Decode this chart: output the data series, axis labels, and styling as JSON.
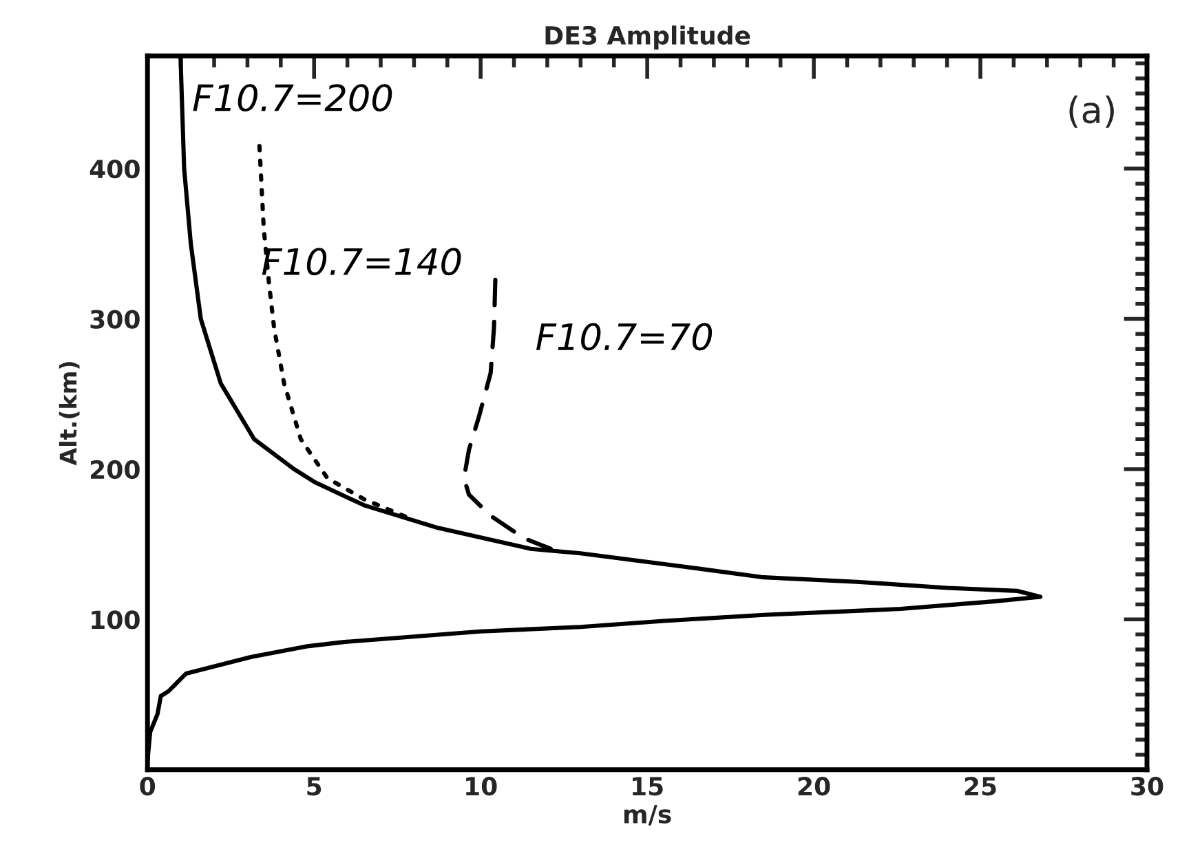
{
  "chart_data": {
    "type": "line",
    "title": "DE3 Amplitude",
    "xlabel": "m/s",
    "ylabel": "Alt.(km)",
    "xlim": [
      0,
      30
    ],
    "xticks": [
      0,
      5,
      10,
      15,
      20,
      25,
      30
    ],
    "ylim": [
      0,
      475
    ],
    "yticks": [
      100,
      200,
      300,
      400
    ],
    "grid": false,
    "legend": false,
    "marker": "none",
    "annotations": [
      "(a)"
    ],
    "series": [
      {
        "name": "F10.7=200",
        "color": "#000000",
        "line_style": "solid",
        "x": [
          0.99,
          1.1,
          1.3,
          1.6,
          2.2,
          3.2,
          4.4,
          5.05,
          6.5,
          8.7,
          11.5,
          13.0,
          15.8,
          18.5,
          21.3,
          24.0,
          26.1,
          26.8,
          25.4,
          22.6,
          18.5,
          15.5,
          13.0,
          10.0,
          5.9,
          4.75,
          3.1,
          1.16,
          0.62,
          0.4,
          0.3,
          0.08,
          0
        ],
        "values": [
          475,
          400,
          350,
          300,
          257,
          220,
          200,
          191,
          176,
          161,
          147,
          144,
          136,
          128,
          125,
          121,
          119,
          115,
          112,
          107,
          103,
          99,
          95,
          92,
          85,
          82,
          75,
          64,
          52,
          49,
          37,
          25,
          6
        ]
      },
      {
        "name": "F10.7=140",
        "color": "#000000",
        "line_style": "dotted",
        "x": [
          3.36,
          3.49,
          3.65,
          3.8,
          4.1,
          4.6,
          5.4,
          6.5,
          8.0
        ],
        "values": [
          415,
          360,
          323,
          294,
          257,
          220,
          194,
          180,
          166
        ]
      },
      {
        "name": "F10.7=70",
        "color": "#000000",
        "line_style": "dashed",
        "x": [
          10.44,
          10.4,
          10.3,
          9.95,
          9.65,
          9.5,
          9.65,
          10.3,
          11.3,
          12.1
        ],
        "values": [
          326,
          294,
          264,
          235,
          213,
          194,
          183,
          169,
          154,
          147
        ]
      }
    ]
  }
}
